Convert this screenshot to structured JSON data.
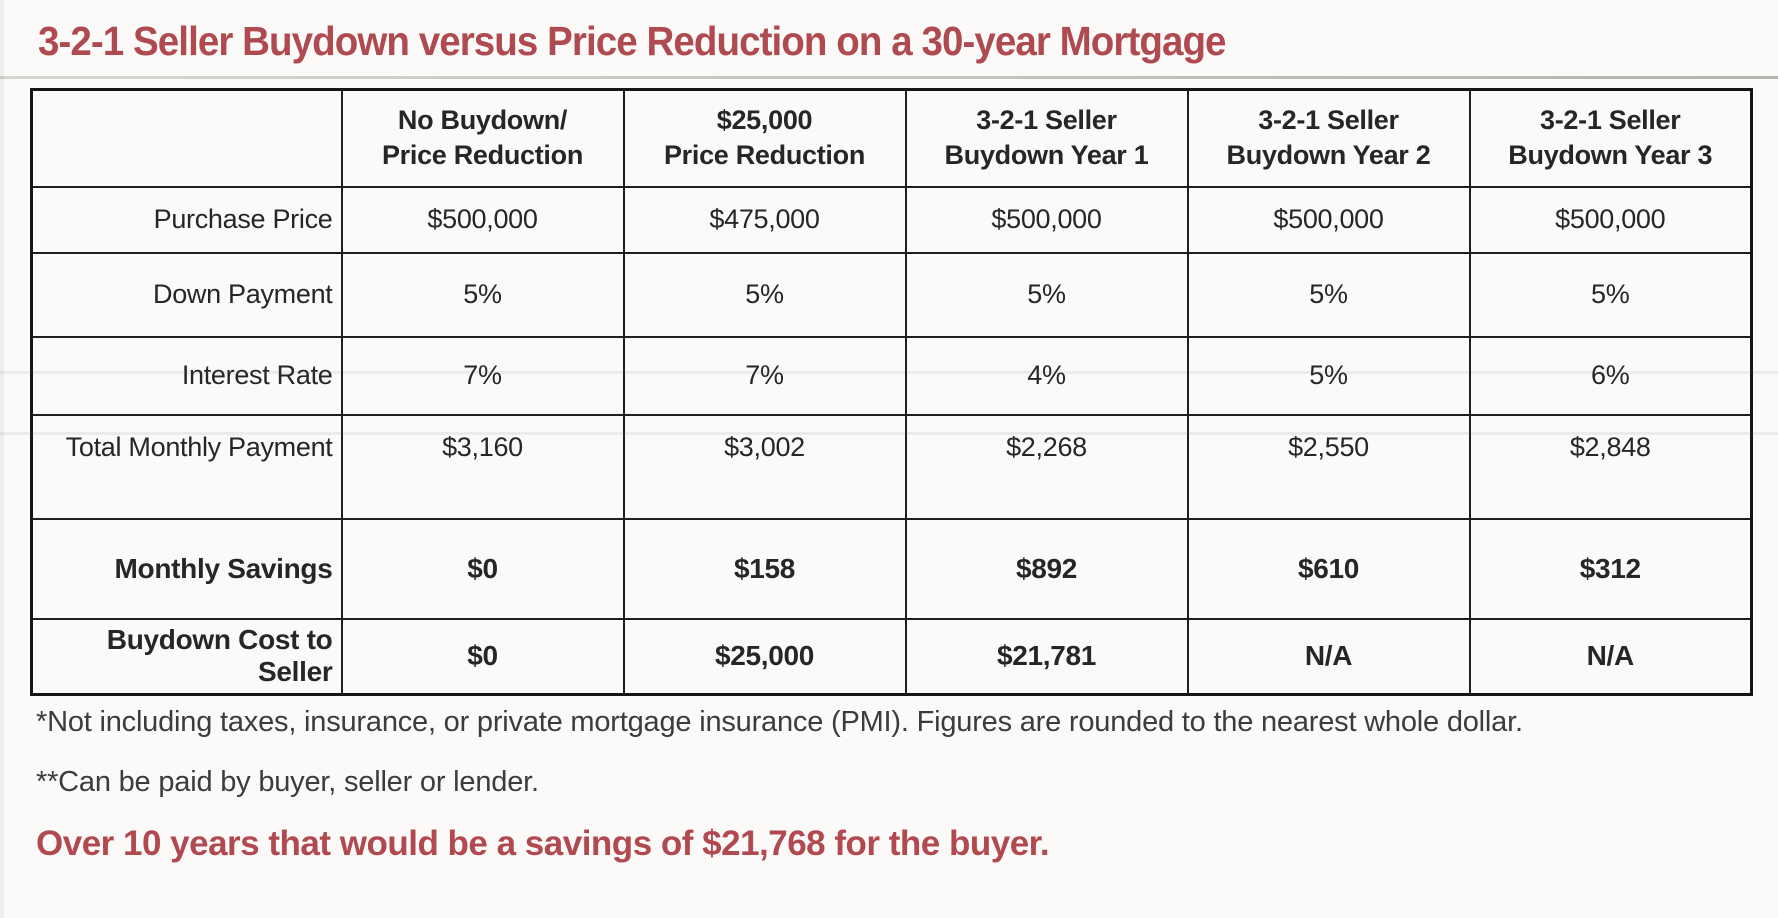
{
  "title": "3-2-1 Seller Buydown versus Price Reduction on a 30-year Mortgage",
  "table": {
    "columns": [
      {
        "line1": "",
        "line2": ""
      },
      {
        "line1": "No Buydown/",
        "line2": "Price Reduction"
      },
      {
        "line1": "$25,000",
        "line2": "Price Reduction"
      },
      {
        "line1": "3-2-1 Seller",
        "line2": "Buydown Year 1"
      },
      {
        "line1": "3-2-1 Seller",
        "line2": "Buydown Year 2"
      },
      {
        "line1": "3-2-1 Seller",
        "line2": "Buydown Year 3"
      }
    ],
    "rows": [
      {
        "label": "Purchase Price",
        "values": [
          "$500,000",
          "$475,000",
          "$500,000",
          "$500,000",
          "$500,000"
        ]
      },
      {
        "label": "Down Payment",
        "values": [
          "5%",
          "5%",
          "5%",
          "5%",
          "5%"
        ]
      },
      {
        "label": "Interest Rate",
        "values": [
          "7%",
          "7%",
          "4%",
          "5%",
          "6%"
        ]
      },
      {
        "label": "Total Monthly Payment",
        "values": [
          "$3,160",
          "$3,002",
          "$2,268",
          "$2,550",
          "$2,848"
        ]
      },
      {
        "label": "Monthly Savings",
        "values": [
          "$0",
          "$158",
          "$892",
          "$610",
          "$312"
        ]
      },
      {
        "label": "Buydown Cost to Seller",
        "values": [
          "$0",
          "$25,000",
          "$21,781",
          "N/A",
          "N/A"
        ]
      }
    ]
  },
  "footnotes": {
    "note1": "*Not including taxes, insurance, or private mortgage insurance (PMI). Figures are rounded to the nearest whole dollar.",
    "note2": "**Can be paid by buyer, seller or lender.",
    "highlight": "Over 10 years that would be a savings of $21,768 for the buyer."
  },
  "colors": {
    "accent_red": "#ae4a50",
    "text": "#272727",
    "border": "#1b1b1b",
    "background": "#fbfaf8"
  }
}
